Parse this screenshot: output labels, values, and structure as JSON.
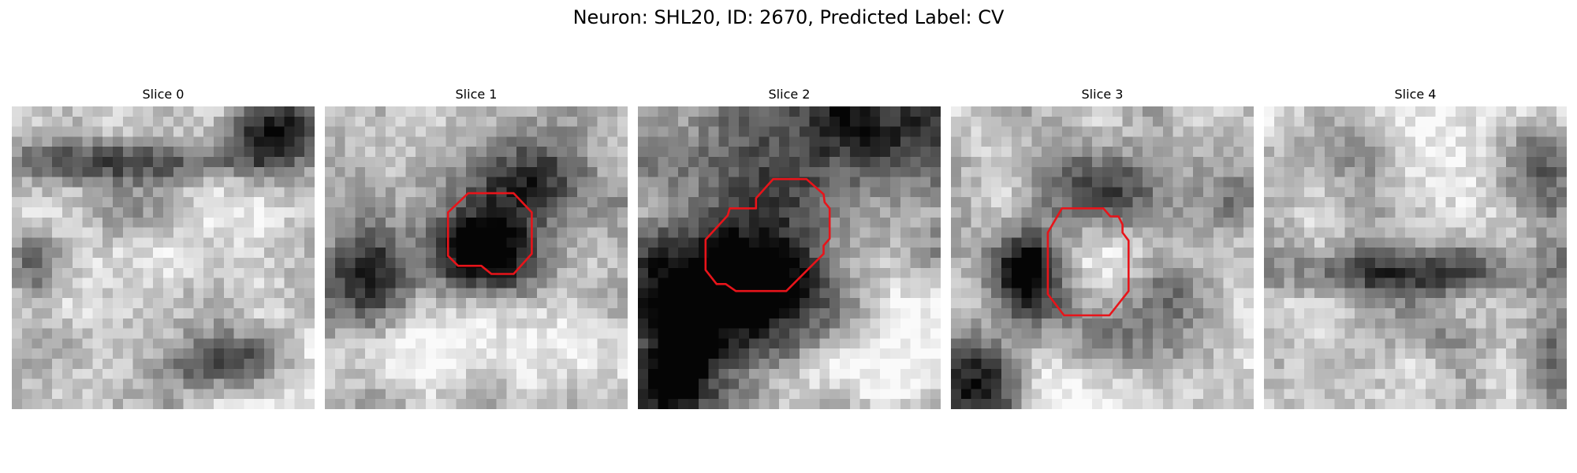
{
  "figure": {
    "title": "Neuron: SHL20, ID: 2670, Predicted Label: CV"
  },
  "slices": [
    {
      "title": "Slice 0",
      "has_contour": false
    },
    {
      "title": "Slice 1",
      "has_contour": true
    },
    {
      "title": "Slice 2",
      "has_contour": true
    },
    {
      "title": "Slice 3",
      "has_contour": true
    },
    {
      "title": "Slice 4",
      "has_contour": false
    }
  ],
  "colors": {
    "contour": "#e8141a",
    "background": "#ffffff"
  }
}
